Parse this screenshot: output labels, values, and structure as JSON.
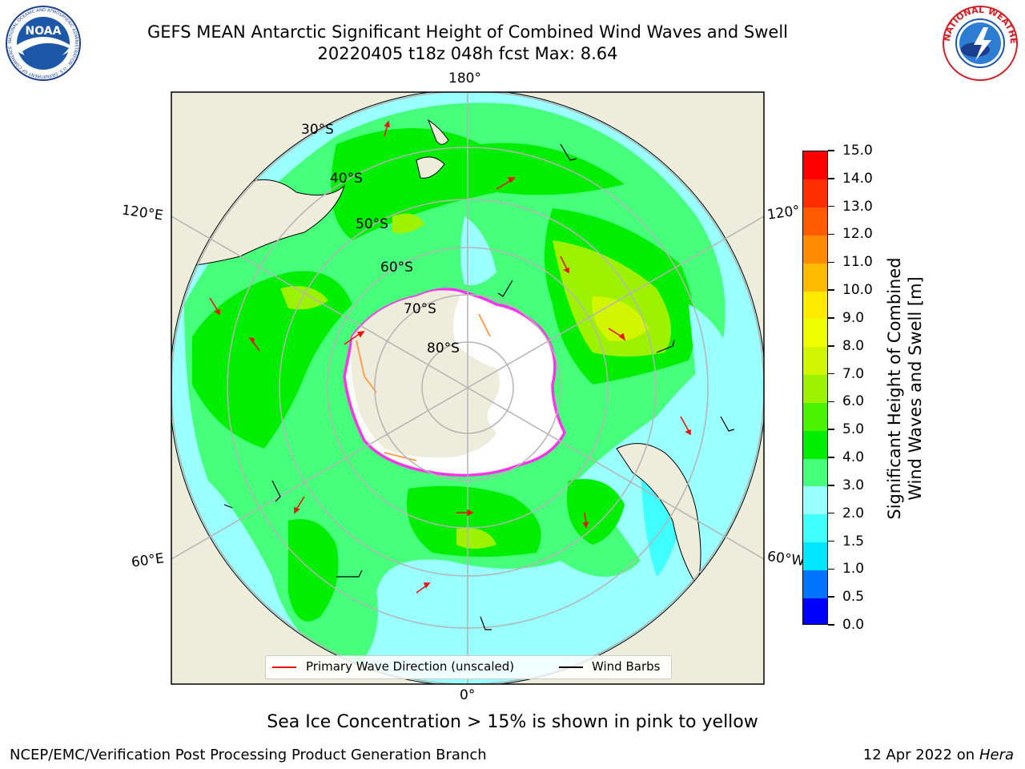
{
  "title": {
    "line1": "GEFS MEAN Antarctic Significant Height of Combined Wind Waves and Swell",
    "line2": "20220405 t18z 048h fcst   Max: 8.64"
  },
  "logos": {
    "noaa": {
      "text": "NOAA",
      "ring_text": "NATIONAL OCEANIC AND ATMOSPHERIC ADMINISTRATION · U.S. DEPARTMENT OF COMMERCE"
    },
    "nws": {
      "ring_text": "NATIONAL WEATHER SERVICE"
    }
  },
  "map": {
    "longitude_labels": {
      "top": "180°",
      "bottom": "0°",
      "left_upper": "120°E",
      "left_lower": "60°E",
      "right_upper": "120°",
      "right_lower": "60°W"
    },
    "latitude_labels": [
      "30°S",
      "40°S",
      "50°S",
      "60°S",
      "70°S",
      "80°S"
    ],
    "colors": {
      "land": "#EEEDDC",
      "ice_sheet": "#FFFFFF",
      "sea_ice_edge": "#FF33EE",
      "sea_ice_inner": "#FFA050",
      "wave_arrow": "#E8160E",
      "wind_barb": "#000000",
      "grid": "#B4B4B4",
      "ocean_default": "#99FFFF"
    },
    "legend": {
      "primary_wave": "Primary Wave Direction (unscaled)",
      "wind_barbs": "Wind Barbs"
    }
  },
  "colorbar": {
    "title_line1": "Significant Height of Combined",
    "title_line2": "Wind Waves and Swell [m]",
    "ticks": [
      "15.0",
      "14.0",
      "13.0",
      "12.0",
      "11.0",
      "10.0",
      "9.0",
      "8.0",
      "7.0",
      "6.0",
      "5.0",
      "4.0",
      "3.0",
      "2.0",
      "1.5",
      "1.0",
      "0.5",
      "0.0"
    ],
    "colors": [
      "#0000FF",
      "#0073FF",
      "#00E6FF",
      "#40FFFF",
      "#99FFFF",
      "#46FF7A",
      "#00EE00",
      "#4BF200",
      "#9CF200",
      "#D2F600",
      "#F0FF00",
      "#FFEA00",
      "#FFBB00",
      "#FF8C00",
      "#FF5A00",
      "#FF2D00",
      "#FF0000"
    ]
  },
  "footnote": "Sea Ice Concentration > 15% is shown in pink to yellow",
  "footer": {
    "left": "NCEP/EMC/Verification Post Processing Product Generation Branch",
    "date": "12 Apr 2022 on",
    "host": "Hera"
  }
}
